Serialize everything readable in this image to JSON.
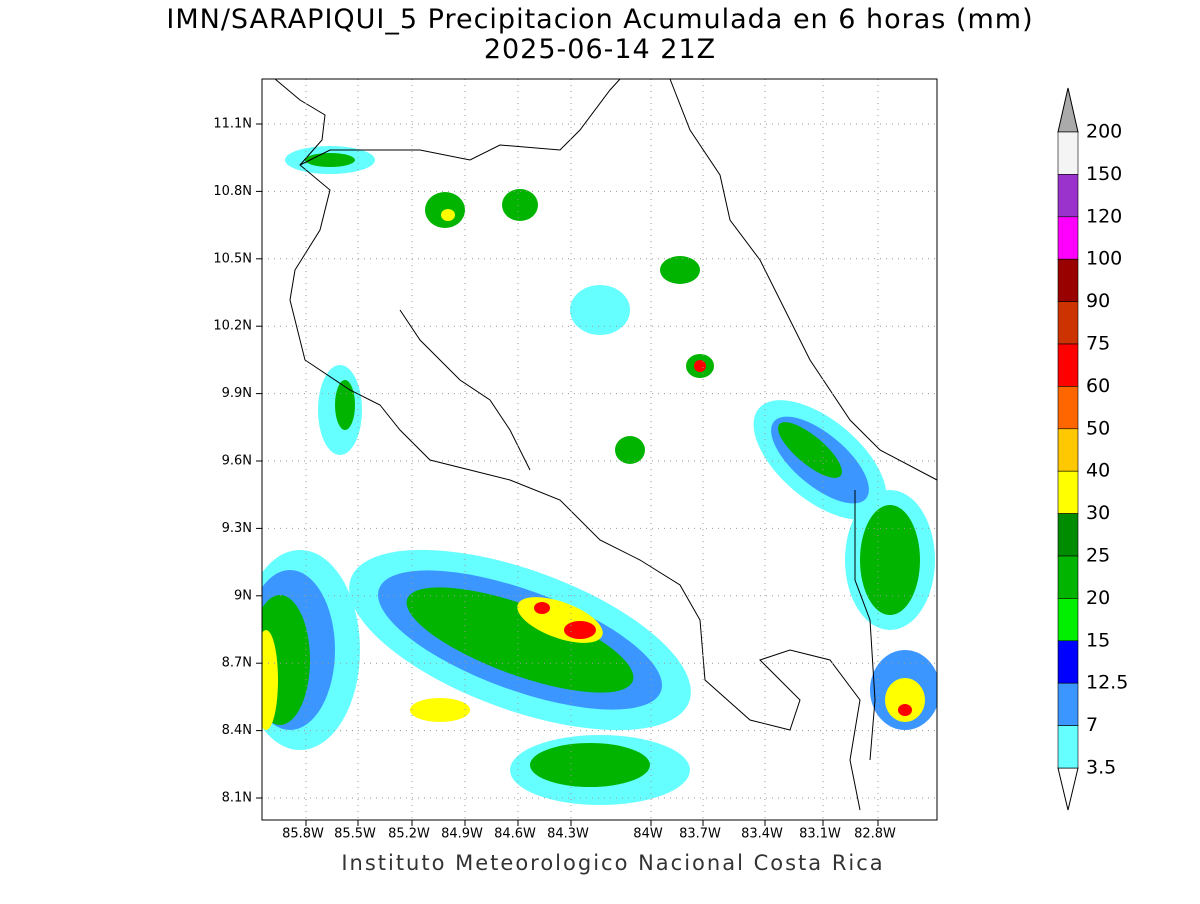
{
  "map": {
    "title": "IMN/SARAPIQUI_5 Precipitacion Acumulada en 6 horas (mm)",
    "subtitle": "2025-06-14 21Z",
    "lat_labels": [
      "11.1N",
      "10.8N",
      "10.5N",
      "10.2N",
      "9.9N",
      "9.6N",
      "9.3N",
      "9N",
      "8.7N",
      "8.4N",
      "8.1N"
    ],
    "lon_labels": [
      "85.8W",
      "85.5W",
      "85.2W",
      "84.9W",
      "84.6W",
      "84.3W",
      "84W",
      "83.7W",
      "83.4W",
      "83.1W",
      "82.8W"
    ],
    "footer": "Instituto Meteorologico Nacional Costa Rica"
  },
  "colorbar": {
    "labels": [
      "200",
      "150",
      "120",
      "100",
      "90",
      "75",
      "60",
      "50",
      "40",
      "30",
      "25",
      "20",
      "15",
      "12.5",
      "7",
      "3.5"
    ],
    "colors": [
      "#f4f4f4",
      "#9933cc",
      "#ff00ff",
      "#990000",
      "#cc3300",
      "#ff0000",
      "#ff6600",
      "#ffc800",
      "#ffff00",
      "#008c00",
      "#00b400",
      "#00f000",
      "#0000ff",
      "#3c96ff",
      "#66ffff"
    ],
    "top_arrow_color": "#aaaaaa",
    "bottom_arrow_color": "#ffffff"
  }
}
